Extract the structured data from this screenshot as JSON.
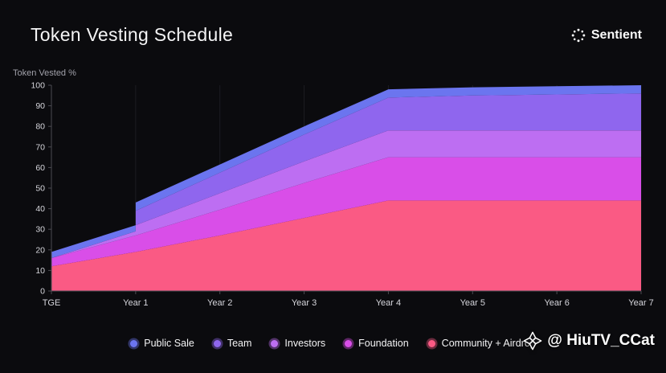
{
  "header": {
    "title": "Token Vesting Schedule",
    "brand": "Sentient"
  },
  "watermark": {
    "handle": "@ HiuTV_CCat"
  },
  "chart_data": {
    "type": "area",
    "stacked": true,
    "title": "Token Vesting Schedule",
    "xlabel": "",
    "ylabel": "Token Vested %",
    "ylim": [
      0,
      100
    ],
    "yticks": [
      0,
      10,
      20,
      30,
      40,
      50,
      60,
      70,
      80,
      90,
      100
    ],
    "x": [
      0,
      1,
      1,
      2,
      3,
      4,
      5,
      6,
      7
    ],
    "x_tick_positions": [
      0,
      1,
      2,
      3,
      4,
      5,
      6,
      7
    ],
    "x_tick_labels": [
      "TGE",
      "Year 1",
      "Year 2",
      "Year 3",
      "Year 4",
      "Year 5",
      "Year 6",
      "Year 7"
    ],
    "grid": "faint-vertical",
    "legend_position": "bottom",
    "series": [
      {
        "name": "Community + Airdrop",
        "color": "#fa5a84",
        "values": [
          12,
          19,
          19,
          27,
          35.5,
          44,
          44,
          44,
          44
        ]
      },
      {
        "name": "Foundation",
        "color": "#d94ee8",
        "values": [
          4,
          8,
          8,
          12.5,
          17,
          21,
          21,
          21,
          21
        ]
      },
      {
        "name": "Investors",
        "color": "#bd6ef2",
        "values": [
          0,
          2,
          5,
          8,
          10.5,
          13,
          13,
          13,
          13
        ]
      },
      {
        "name": "Team",
        "color": "#8f66ee",
        "values": [
          0,
          0,
          7,
          10,
          13,
          16,
          17,
          17.5,
          18
        ]
      },
      {
        "name": "Public Sale",
        "color": "#6b75ef",
        "values": [
          3,
          3,
          4,
          4,
          4,
          4,
          4,
          4,
          4
        ]
      }
    ],
    "axis_color": "#4b4b52",
    "grid_color": "#1d1d22",
    "tick_label_color": "#d6d6dc"
  }
}
